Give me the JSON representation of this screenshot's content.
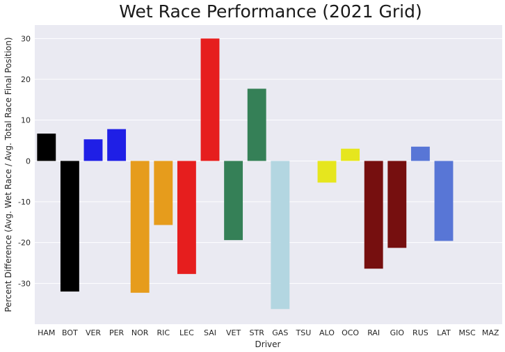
{
  "chart_data": {
    "type": "bar",
    "title": "Wet Race Performance (2021 Grid)",
    "xlabel": "Driver",
    "ylabel": "Percent Difference (Avg. Wet Race / Avg. Total Race Final Position)",
    "categories": [
      "HAM",
      "BOT",
      "VER",
      "PER",
      "NOR",
      "RIC",
      "LEC",
      "SAI",
      "VET",
      "STR",
      "GAS",
      "TSU",
      "ALO",
      "OCO",
      "RAI",
      "GIO",
      "RUS",
      "LAT",
      "MSC",
      "MAZ"
    ],
    "values": [
      6.7,
      -32.0,
      5.3,
      7.8,
      -32.3,
      -15.7,
      -27.7,
      30.0,
      -19.4,
      17.7,
      -36.3,
      0,
      -5.3,
      3.0,
      -26.4,
      -21.3,
      3.5,
      -19.6,
      0,
      0
    ],
    "colors": [
      "#000000",
      "#000000",
      "#1f1fe6",
      "#1f1fe6",
      "#e69c1c",
      "#e69c1c",
      "#e61e1e",
      "#e61e1e",
      "#358057",
      "#358057",
      "#b3d6e1",
      "#b3d6e1",
      "#e6e61e",
      "#e6e61e",
      "#760f0f",
      "#760f0f",
      "#5876d6",
      "#5876d6",
      "#ffffff",
      "#ffffff"
    ],
    "yticks": [
      -30,
      -20,
      -10,
      0,
      10,
      20,
      30
    ],
    "ylim": [
      -40.0,
      33.3
    ],
    "grid": true,
    "background": "#eaeaf2"
  }
}
